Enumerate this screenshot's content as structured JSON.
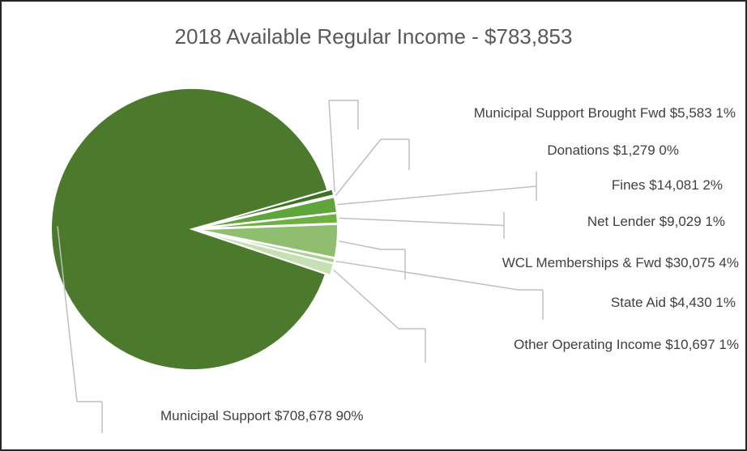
{
  "chart_data": {
    "type": "pie",
    "title": "2018 Available Regular Income - $783,853",
    "categories": [
      "Municipal Support Brought Fwd",
      "Donations",
      "Fines",
      "Net Lender",
      "WCL Memberships & Fwd",
      "State Aid",
      "Other Operating Income",
      "Municipal Support"
    ],
    "values": [
      5583,
      1279,
      14081,
      9029,
      30075,
      4430,
      10697,
      708678
    ],
    "value_labels": [
      "$5,583",
      "$1,279",
      "$14,081",
      "$9,029",
      "$30,075",
      "$4,430",
      "$10,697",
      "$708,678"
    ],
    "percent_labels": [
      "1%",
      "0%",
      "2%",
      "1%",
      "4%",
      "1%",
      "1%",
      "90%"
    ],
    "colors": [
      "#3d7326",
      "#4a8a2e",
      "#5ea53a",
      "#6fb045",
      "#8fbf6e",
      "#a9d08e",
      "#c6e0b4",
      "#4b7a2c"
    ],
    "start_angle": 74
  }
}
